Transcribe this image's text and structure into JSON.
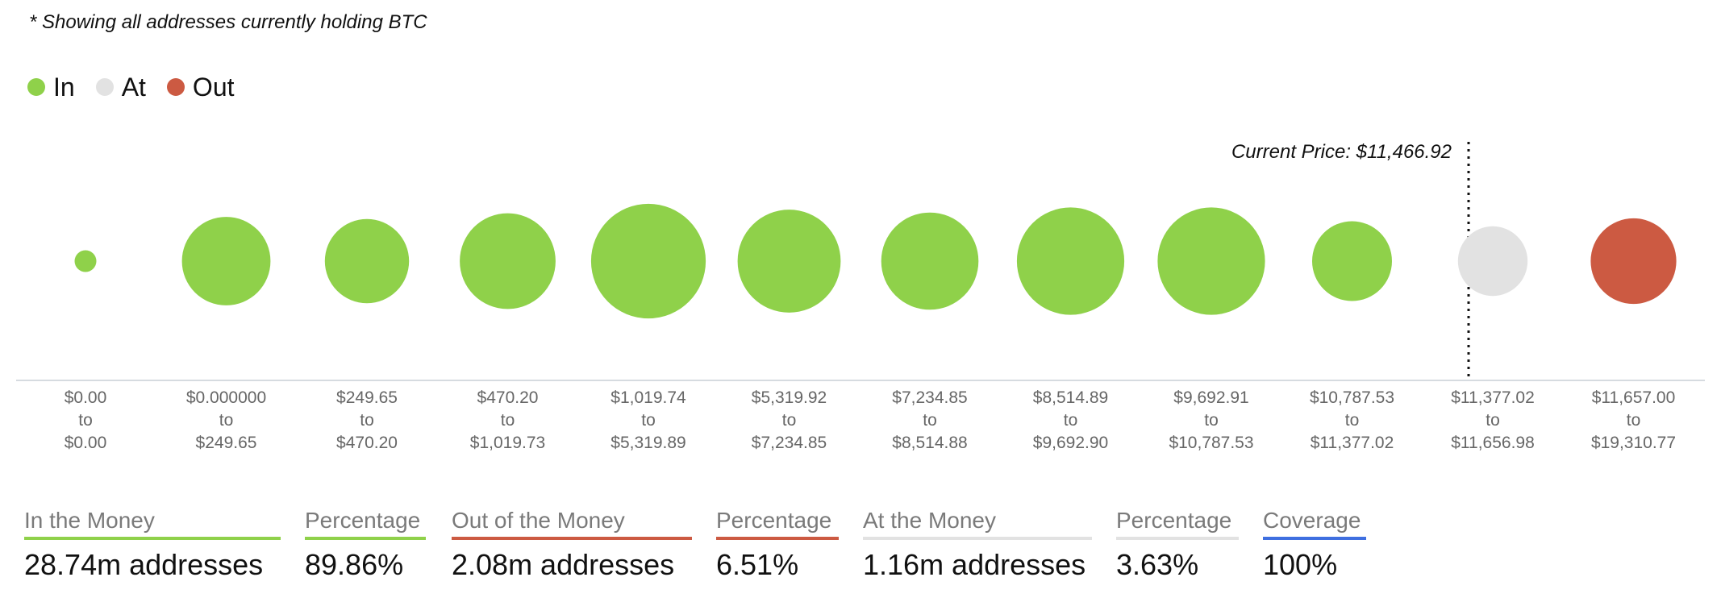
{
  "note": "* Showing all addresses currently holding BTC",
  "colors": {
    "in": "#8fd14a",
    "at": "#e2e2e2",
    "out": "#cc5a42",
    "coverage": "#3f6fe0"
  },
  "legend": [
    {
      "label": "In",
      "color": "#8fd14a"
    },
    {
      "label": "At",
      "color": "#e2e2e2"
    },
    {
      "label": "Out",
      "color": "#cc5a42"
    }
  ],
  "chart_data": {
    "type": "bubble",
    "current_price_label": "Current Price: $11,466.92",
    "current_price_position": "between bucket 10 and bucket 11",
    "bubble_size_meaning": "relative number of addresses (estimated)",
    "buckets": [
      {
        "from": "$0.00",
        "to": "$0.00",
        "status": "in",
        "relative_size": 0.15
      },
      {
        "from": "$0.000000",
        "to": "$249.65",
        "status": "in",
        "relative_size": 0.61
      },
      {
        "from": "$249.65",
        "to": "$470.20",
        "status": "in",
        "relative_size": 0.58
      },
      {
        "from": "$470.20",
        "to": "$1,019.73",
        "status": "in",
        "relative_size": 0.66
      },
      {
        "from": "$1,019.74",
        "to": "$5,319.89",
        "status": "in",
        "relative_size": 0.79
      },
      {
        "from": "$5,319.92",
        "to": "$7,234.85",
        "status": "in",
        "relative_size": 0.71
      },
      {
        "from": "$7,234.85",
        "to": "$8,514.88",
        "status": "in",
        "relative_size": 0.67
      },
      {
        "from": "$8,514.89",
        "to": "$9,692.90",
        "status": "in",
        "relative_size": 0.74
      },
      {
        "from": "$9,692.91",
        "to": "$10,787.53",
        "status": "in",
        "relative_size": 0.74
      },
      {
        "from": "$10,787.53",
        "to": "$11,377.02",
        "status": "in",
        "relative_size": 0.55
      },
      {
        "from": "$11,377.02",
        "to": "$11,656.98",
        "status": "at",
        "relative_size": 0.48
      },
      {
        "from": "$11,657.00",
        "to": "$19,310.77",
        "status": "out",
        "relative_size": 0.59
      }
    ],
    "range_connector": "to"
  },
  "stats": [
    {
      "label": "In the Money",
      "value": "28.74m addresses",
      "color": "#8fd14a"
    },
    {
      "label": "Percentage",
      "value": "89.86%",
      "color": "#8fd14a"
    },
    {
      "label": "Out of the Money",
      "value": "2.08m addresses",
      "color": "#cc5a42"
    },
    {
      "label": "Percentage",
      "value": "6.51%",
      "color": "#cc5a42"
    },
    {
      "label": "At the Money",
      "value": "1.16m addresses",
      "color": "#e2e2e2"
    },
    {
      "label": "Percentage",
      "value": "3.63%",
      "color": "#e2e2e2"
    },
    {
      "label": "Coverage",
      "value": "100%",
      "color": "#3f6fe0"
    }
  ]
}
